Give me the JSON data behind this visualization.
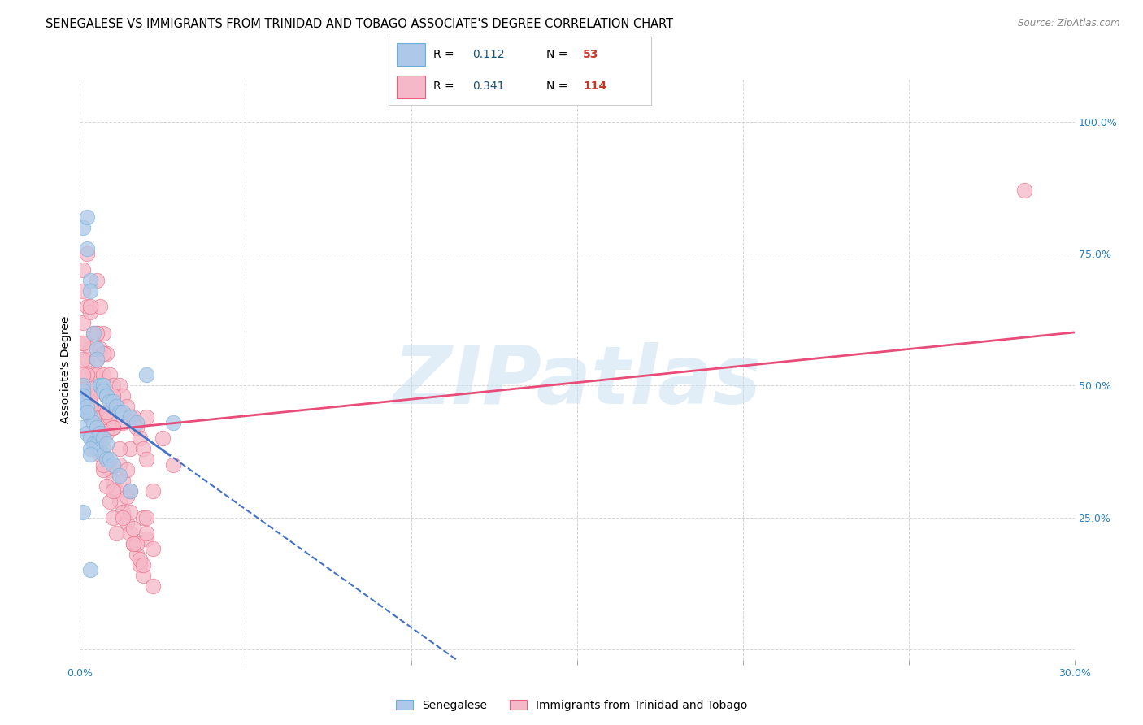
{
  "title": "SENEGALESE VS IMMIGRANTS FROM TRINIDAD AND TOBAGO ASSOCIATE'S DEGREE CORRELATION CHART",
  "source_text": "Source: ZipAtlas.com",
  "ylabel": "Associate's Degree",
  "xlim": [
    0.0,
    0.3
  ],
  "ylim": [
    -0.02,
    1.08
  ],
  "xtick_values": [
    0.0,
    0.05,
    0.1,
    0.15,
    0.2,
    0.25,
    0.3
  ],
  "xtick_labels": [
    "0.0%",
    "",
    "",
    "",
    "",
    "",
    "30.0%"
  ],
  "ytick_values": [
    0.0,
    0.25,
    0.5,
    0.75,
    1.0
  ],
  "ytick_labels": [
    "",
    "25.0%",
    "50.0%",
    "75.0%",
    "100.0%"
  ],
  "senegalese": {
    "name": "Senegalese",
    "R": 0.112,
    "N": 53,
    "color": "#adc8e8",
    "edge_color": "#6baed6",
    "line_color": "#4472c4",
    "x": [
      0.001,
      0.002,
      0.002,
      0.003,
      0.003,
      0.004,
      0.005,
      0.005,
      0.006,
      0.006,
      0.007,
      0.007,
      0.008,
      0.008,
      0.009,
      0.01,
      0.011,
      0.012,
      0.013,
      0.015,
      0.017,
      0.02,
      0.001,
      0.002,
      0.003,
      0.004,
      0.005,
      0.006,
      0.007,
      0.008,
      0.009,
      0.01,
      0.012,
      0.015,
      0.001,
      0.002,
      0.003,
      0.004,
      0.005,
      0.006,
      0.007,
      0.008,
      0.001,
      0.001,
      0.001,
      0.001,
      0.002,
      0.002,
      0.003,
      0.003,
      0.028,
      0.001,
      0.003
    ],
    "y": [
      0.8,
      0.82,
      0.76,
      0.7,
      0.68,
      0.6,
      0.57,
      0.55,
      0.5,
      0.5,
      0.5,
      0.49,
      0.48,
      0.48,
      0.47,
      0.47,
      0.46,
      0.45,
      0.45,
      0.44,
      0.43,
      0.52,
      0.42,
      0.41,
      0.4,
      0.39,
      0.39,
      0.38,
      0.37,
      0.36,
      0.36,
      0.35,
      0.33,
      0.3,
      0.46,
      0.45,
      0.44,
      0.43,
      0.42,
      0.41,
      0.4,
      0.39,
      0.5,
      0.49,
      0.48,
      0.47,
      0.46,
      0.45,
      0.38,
      0.37,
      0.43,
      0.26,
      0.15
    ]
  },
  "trinidad": {
    "name": "Immigrants from Trinidad and Tobago",
    "R": 0.341,
    "N": 114,
    "color": "#f5b8c8",
    "edge_color": "#e8607a",
    "line_color": "#e84d7a",
    "x": [
      0.001,
      0.001,
      0.001,
      0.001,
      0.001,
      0.002,
      0.002,
      0.002,
      0.002,
      0.003,
      0.003,
      0.003,
      0.003,
      0.004,
      0.004,
      0.004,
      0.005,
      0.005,
      0.005,
      0.005,
      0.005,
      0.006,
      0.006,
      0.006,
      0.006,
      0.007,
      0.007,
      0.007,
      0.008,
      0.008,
      0.008,
      0.009,
      0.009,
      0.01,
      0.01,
      0.011,
      0.012,
      0.013,
      0.013,
      0.014,
      0.015,
      0.015,
      0.016,
      0.017,
      0.018,
      0.019,
      0.02,
      0.02,
      0.001,
      0.002,
      0.003,
      0.004,
      0.005,
      0.006,
      0.007,
      0.008,
      0.009,
      0.01,
      0.011,
      0.012,
      0.013,
      0.014,
      0.015,
      0.016,
      0.017,
      0.018,
      0.019,
      0.02,
      0.001,
      0.002,
      0.003,
      0.004,
      0.005,
      0.006,
      0.007,
      0.008,
      0.009,
      0.01,
      0.011,
      0.012,
      0.013,
      0.014,
      0.015,
      0.016,
      0.017,
      0.018,
      0.019,
      0.02,
      0.022,
      0.003,
      0.005,
      0.007,
      0.008,
      0.01,
      0.012,
      0.014,
      0.015,
      0.02,
      0.001,
      0.003,
      0.005,
      0.007,
      0.01,
      0.013,
      0.016,
      0.019,
      0.022,
      0.025,
      0.028,
      0.005,
      0.007,
      0.01,
      0.285,
      0.022
    ],
    "y": [
      0.72,
      0.68,
      0.62,
      0.58,
      0.5,
      0.75,
      0.65,
      0.55,
      0.48,
      0.64,
      0.57,
      0.5,
      0.44,
      0.6,
      0.52,
      0.45,
      0.7,
      0.6,
      0.52,
      0.45,
      0.38,
      0.65,
      0.57,
      0.49,
      0.42,
      0.6,
      0.52,
      0.44,
      0.56,
      0.48,
      0.41,
      0.52,
      0.44,
      0.5,
      0.42,
      0.46,
      0.5,
      0.48,
      0.43,
      0.46,
      0.44,
      0.38,
      0.44,
      0.42,
      0.4,
      0.38,
      0.44,
      0.36,
      0.55,
      0.5,
      0.47,
      0.44,
      0.42,
      0.4,
      0.38,
      0.36,
      0.34,
      0.32,
      0.3,
      0.28,
      0.26,
      0.24,
      0.22,
      0.2,
      0.18,
      0.16,
      0.25,
      0.21,
      0.58,
      0.52,
      0.48,
      0.44,
      0.4,
      0.37,
      0.34,
      0.31,
      0.28,
      0.25,
      0.22,
      0.35,
      0.32,
      0.29,
      0.26,
      0.23,
      0.2,
      0.17,
      0.14,
      0.22,
      0.19,
      0.65,
      0.55,
      0.5,
      0.45,
      0.42,
      0.38,
      0.34,
      0.3,
      0.25,
      0.52,
      0.46,
      0.4,
      0.35,
      0.3,
      0.25,
      0.2,
      0.16,
      0.12,
      0.4,
      0.35,
      0.6,
      0.56,
      0.48,
      0.87,
      0.3
    ]
  },
  "watermark_text": "ZIPatlas",
  "watermark_color": "#c5dff0",
  "watermark_alpha": 0.5,
  "legend_R_color": "#1a5276",
  "legend_N_color": "#c0392b",
  "background_color": "#ffffff",
  "grid_color": "#cccccc",
  "axis_tick_color": "#2980b9",
  "title_fontsize": 10.5,
  "source_fontsize": 8.5,
  "tick_fontsize": 9,
  "legend_fontsize": 10
}
